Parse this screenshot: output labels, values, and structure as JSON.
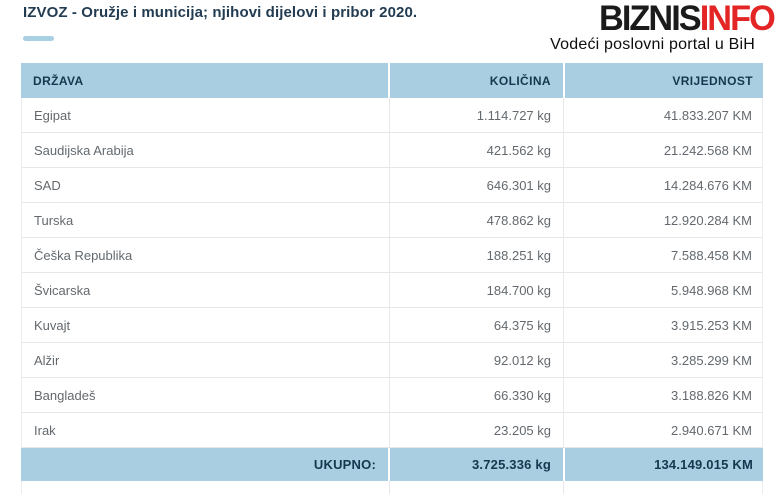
{
  "page": {
    "title": "IZVOZ - Oružje i municija; njihovi dijelovi i pribor 2020.",
    "logo": {
      "part1": "BIZNIS",
      "part2": "INFO",
      "tagline": "Vodeći poslovni portal u BiH"
    }
  },
  "chart_data": {
    "type": "table",
    "title": "IZVOZ - Oružje i municija; njihovi dijelovi i pribor 2020.",
    "columns": [
      "DRŽAVA",
      "KOLIČINA",
      "VRIJEDNOST"
    ],
    "quantity_unit": "kg",
    "value_unit": "KM",
    "rows": [
      {
        "country": "Egipat",
        "quantity": "1.114.727 kg",
        "value": "41.833.207 KM"
      },
      {
        "country": "Saudijska Arabija",
        "quantity": "421.562 kg",
        "value": "21.242.568 KM"
      },
      {
        "country": "SAD",
        "quantity": "646.301 kg",
        "value": "14.284.676 KM"
      },
      {
        "country": "Turska",
        "quantity": "478.862 kg",
        "value": "12.920.284 KM"
      },
      {
        "country": "Češka Republika",
        "quantity": "188.251 kg",
        "value": "7.588.458 KM"
      },
      {
        "country": "Švicarska",
        "quantity": "184.700 kg",
        "value": "5.948.968 KM"
      },
      {
        "country": "Kuvajt",
        "quantity": "64.375 kg",
        "value": "3.915.253 KM"
      },
      {
        "country": "Alžir",
        "quantity": "92.012 kg",
        "value": "3.285.299 KM"
      },
      {
        "country": "Bangladeš",
        "quantity": "66.330 kg",
        "value": "3.188.826 KM"
      },
      {
        "country": "Irak",
        "quantity": "23.205 kg",
        "value": "2.940.671 KM"
      }
    ],
    "total": {
      "label": "UKUPNO:",
      "quantity": "3.725.336 kg",
      "value": "134.149.015 KM"
    }
  },
  "colors": {
    "accent_blue": "#a9cee1",
    "logo_red": "#e32526",
    "heading_navy": "#233c52",
    "row_text_gray": "#63696e"
  }
}
